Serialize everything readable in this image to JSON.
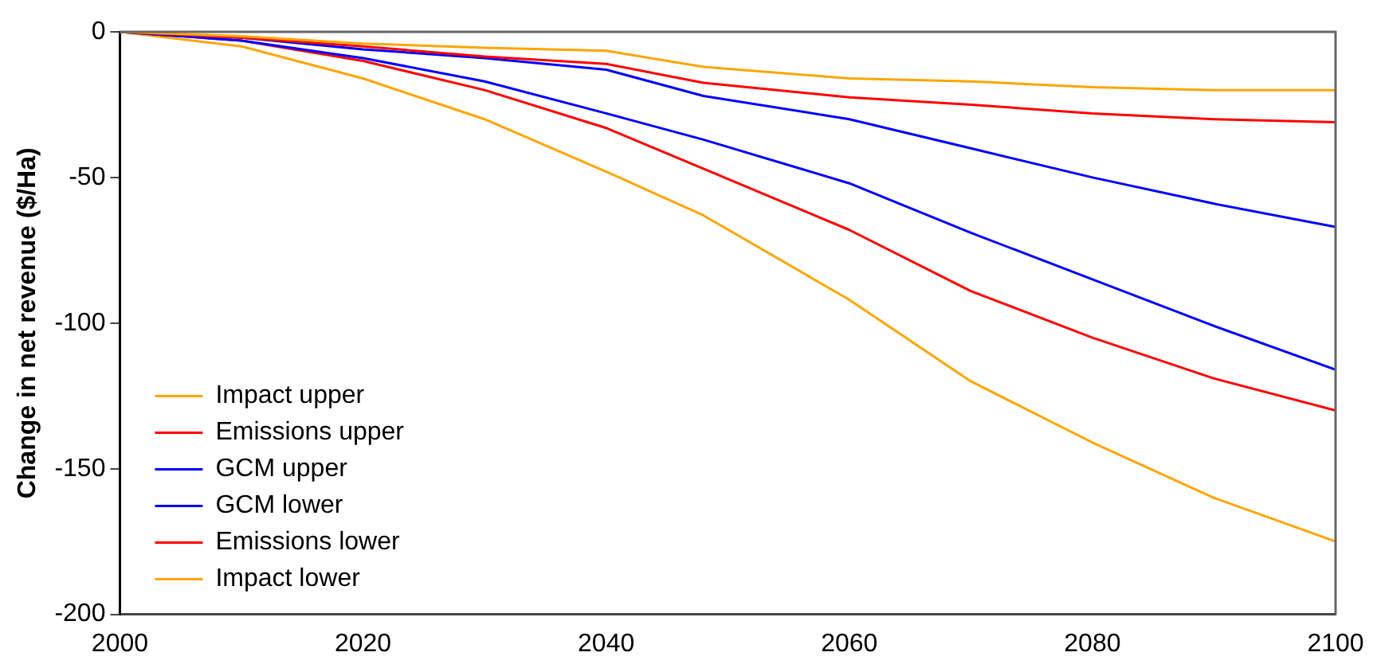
{
  "chart_data": {
    "type": "line",
    "ylabel": "Change in net revenue ($/Ha)",
    "x": [
      2000,
      2010,
      2020,
      2030,
      2040,
      2048,
      2060,
      2070,
      2080,
      2090,
      2100
    ],
    "series": [
      {
        "name": "Impact upper",
        "color": "#ffa500",
        "values": [
          0,
          -1.5,
          -4,
          -5.5,
          -6.5,
          -12,
          -16,
          -17,
          -19,
          -20,
          -20
        ]
      },
      {
        "name": "Emissions upper",
        "color": "#ff0000",
        "values": [
          0,
          -2,
          -5,
          -8.5,
          -11,
          -17.5,
          -22.5,
          -25,
          -28,
          -30,
          -31
        ]
      },
      {
        "name": "GCM upper",
        "color": "#0000ff",
        "values": [
          0,
          -2,
          -6,
          -9,
          -13,
          -22,
          -30,
          -40,
          -50,
          -59,
          -67
        ]
      },
      {
        "name": "GCM lower",
        "color": "#0000ff",
        "values": [
          0,
          -3,
          -9,
          -17,
          -28,
          -37,
          -52,
          -69,
          -85,
          -101,
          -116
        ]
      },
      {
        "name": "Emissions lower",
        "color": "#ff0000",
        "values": [
          0,
          -3,
          -10,
          -20,
          -33,
          -47,
          -68,
          -89,
          -105,
          -119,
          -130
        ]
      },
      {
        "name": "Impact lower",
        "color": "#ffa500",
        "values": [
          0,
          -5,
          -16,
          -30,
          -48,
          -63,
          -92,
          -120,
          -141,
          -160,
          -175
        ]
      }
    ],
    "xlim": [
      2000,
      2100
    ],
    "xticks": [
      2000,
      2020,
      2040,
      2060,
      2080,
      2100
    ],
    "ylim": [
      -200,
      0
    ],
    "yticks": [
      -200,
      -150,
      -100,
      -50,
      0
    ],
    "legend": "bottom left",
    "grid": false,
    "marker": "none",
    "line_style": "solid"
  }
}
